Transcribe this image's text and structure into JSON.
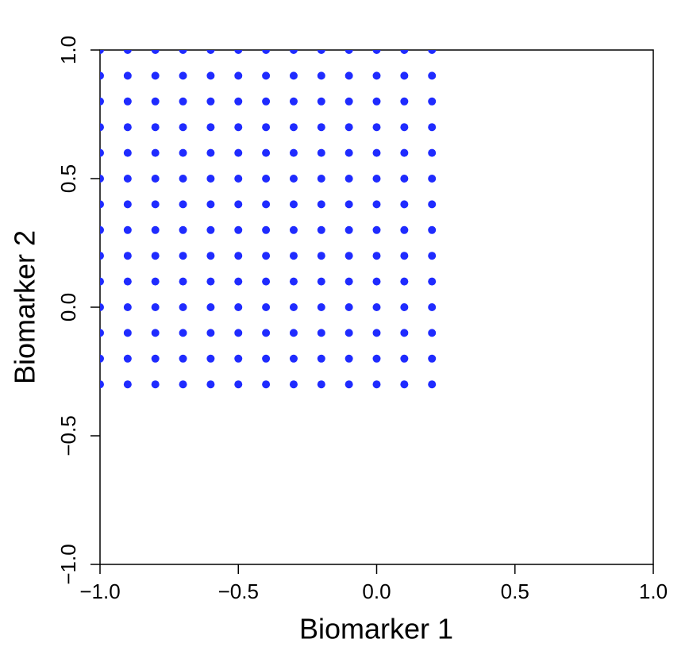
{
  "chart_data": {
    "type": "scatter",
    "x_label": "Biomarker 1",
    "y_label": "Biomarker 2",
    "color": "#1f2bff",
    "xlim": [
      -1,
      1
    ],
    "ylim": [
      -1,
      1
    ],
    "xticks": [
      {
        "value": -1,
        "label": "−1.0"
      },
      {
        "value": -0.5,
        "label": "−0.5"
      },
      {
        "value": 0,
        "label": "0.0"
      },
      0.5,
      {
        "value": 1,
        "label": "1.0"
      }
    ],
    "yticks": [
      {
        "value": -1,
        "label": "−1.0"
      },
      {
        "value": -0.5,
        "label": "−0.5"
      },
      {
        "value": 0,
        "label": "0.0"
      },
      0.5,
      {
        "value": 1,
        "label": "1.0"
      }
    ],
    "x": [
      -1,
      -0.9,
      -0.8,
      -0.7,
      -0.6,
      -0.5,
      -0.4,
      -0.3,
      -0.2,
      -0.1,
      0,
      0.1,
      0.2,
      -1,
      -0.9,
      -0.8,
      -0.7,
      -0.6,
      -0.5,
      -0.4,
      -0.3,
      -0.2,
      -0.1,
      0,
      0.1,
      0.2,
      -1,
      -0.9,
      -0.8,
      -0.7,
      -0.6,
      -0.5,
      -0.4,
      -0.3,
      -0.2,
      -0.1,
      0,
      0.1,
      0.2,
      -1,
      -0.9,
      -0.8,
      -0.7,
      -0.6,
      -0.5,
      -0.4,
      -0.3,
      -0.2,
      -0.1,
      0,
      0.1,
      0.2,
      -1,
      -0.9,
      -0.8,
      -0.7,
      -0.6,
      -0.5,
      -0.4,
      -0.3,
      -0.2,
      -0.1,
      0,
      0.1,
      0.2,
      -1,
      -0.9,
      -0.8,
      -0.7,
      -0.6,
      -0.5,
      -0.4,
      -0.3,
      -0.2,
      -0.1,
      0,
      0.1,
      0.2,
      -1,
      -0.9,
      -0.8,
      -0.7,
      -0.6,
      -0.5,
      -0.4,
      -0.3,
      -0.2,
      -0.1,
      0,
      0.1,
      0.2,
      -1,
      -0.9,
      -0.8,
      -0.7,
      -0.6,
      -0.5,
      -0.4,
      -0.3,
      -0.2,
      -0.1,
      0,
      0.1,
      0.2,
      -1,
      -0.9,
      -0.8,
      -0.7,
      -0.6,
      -0.5,
      -0.4,
      -0.3,
      -0.2,
      -0.1,
      0,
      0.1,
      0.2,
      -1,
      -0.9,
      -0.8,
      -0.7,
      -0.6,
      -0.5,
      -0.4,
      -0.3,
      -0.2,
      -0.1,
      0,
      0.1,
      0.2,
      -1,
      -0.9,
      -0.8,
      -0.7,
      -0.6,
      -0.5,
      -0.4,
      -0.3,
      -0.2,
      -0.1,
      0,
      0.1,
      0.2,
      -1,
      -0.9,
      -0.8,
      -0.7,
      -0.6,
      -0.5,
      -0.4,
      -0.3,
      -0.2,
      -0.1,
      0,
      0.1,
      0.2,
      -1,
      -0.9,
      -0.8,
      -0.7,
      -0.6,
      -0.5,
      -0.4,
      -0.3,
      -0.2,
      -0.1,
      0,
      0.1,
      0.2,
      -1,
      -0.9,
      -0.8,
      -0.7,
      -0.6,
      -0.5,
      -0.4,
      -0.3,
      -0.2,
      -0.1,
      0,
      0.1,
      0.2
    ],
    "values": [
      1,
      1,
      1,
      1,
      1,
      1,
      1,
      1,
      1,
      1,
      1,
      1,
      1,
      0.9,
      0.9,
      0.9,
      0.9,
      0.9,
      0.9,
      0.9,
      0.9,
      0.9,
      0.9,
      0.9,
      0.9,
      0.9,
      0.8,
      0.8,
      0.8,
      0.8,
      0.8,
      0.8,
      0.8,
      0.8,
      0.8,
      0.8,
      0.8,
      0.8,
      0.8,
      0.7,
      0.7,
      0.7,
      0.7,
      0.7,
      0.7,
      0.7,
      0.7,
      0.7,
      0.7,
      0.7,
      0.7,
      0.7,
      0.6,
      0.6,
      0.6,
      0.6,
      0.6,
      0.6,
      0.6,
      0.6,
      0.6,
      0.6,
      0.6,
      0.6,
      0.6,
      0.5,
      0.5,
      0.5,
      0.5,
      0.5,
      0.5,
      0.5,
      0.5,
      0.5,
      0.5,
      0.5,
      0.5,
      0.5,
      0.4,
      0.4,
      0.4,
      0.4,
      0.4,
      0.4,
      0.4,
      0.4,
      0.4,
      0.4,
      0.4,
      0.4,
      0.4,
      0.3,
      0.3,
      0.3,
      0.3,
      0.3,
      0.3,
      0.3,
      0.3,
      0.3,
      0.3,
      0.3,
      0.3,
      0.3,
      0.2,
      0.2,
      0.2,
      0.2,
      0.2,
      0.2,
      0.2,
      0.2,
      0.2,
      0.2,
      0.2,
      0.2,
      0.2,
      0.1,
      0.1,
      0.1,
      0.1,
      0.1,
      0.1,
      0.1,
      0.1,
      0.1,
      0.1,
      0.1,
      0.1,
      0.1,
      0,
      0,
      0,
      0,
      0,
      0,
      0,
      0,
      0,
      0,
      0,
      0,
      0,
      -0.1,
      -0.1,
      -0.1,
      -0.1,
      -0.1,
      -0.1,
      -0.1,
      -0.1,
      -0.1,
      -0.1,
      -0.1,
      -0.1,
      -0.1,
      -0.2,
      -0.2,
      -0.2,
      -0.2,
      -0.2,
      -0.2,
      -0.2,
      -0.2,
      -0.2,
      -0.2,
      -0.2,
      -0.2,
      -0.2,
      -0.3,
      -0.3,
      -0.3,
      -0.3,
      -0.3,
      -0.3,
      -0.3,
      -0.3,
      -0.3,
      -0.3,
      -0.3,
      -0.3,
      -0.3
    ]
  }
}
